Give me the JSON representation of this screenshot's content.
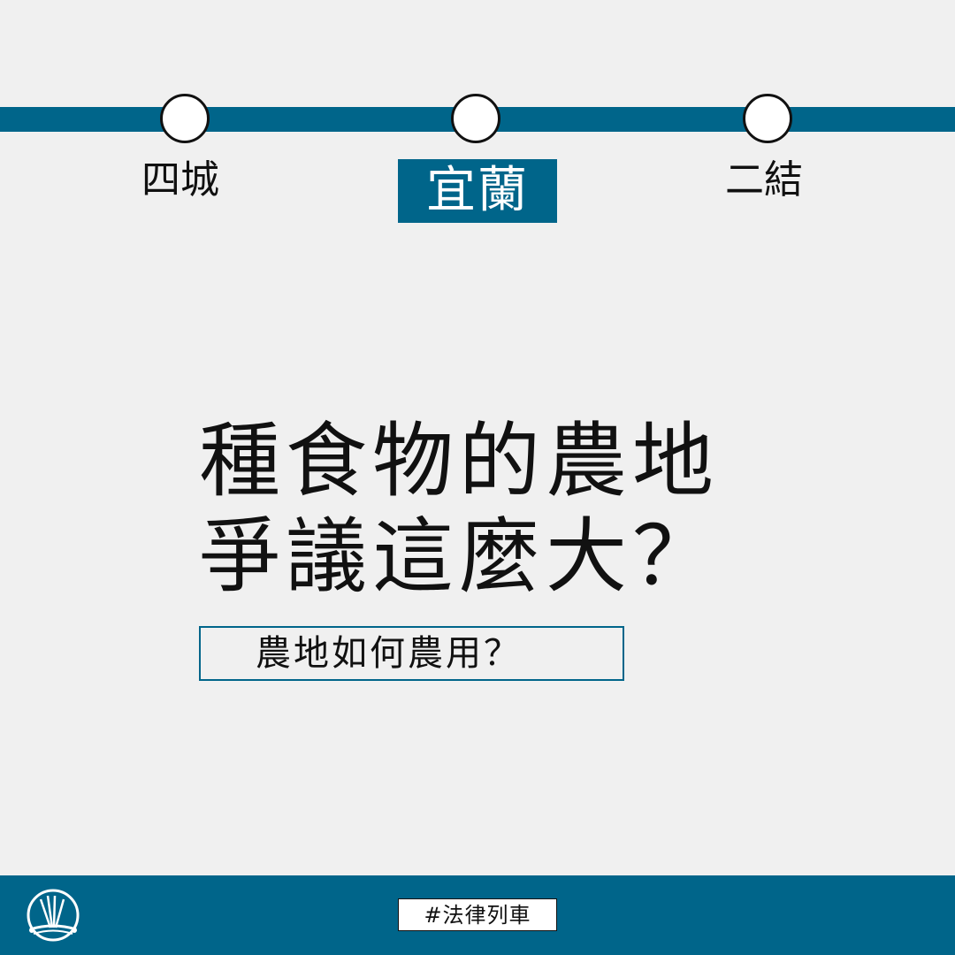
{
  "stations": {
    "previous": "四城",
    "current": "宜蘭",
    "next": "二結"
  },
  "headline": {
    "line1": "種食物的農地",
    "line2": "爭議這麼大？"
  },
  "subtitle": "農地如何農用？",
  "footer": {
    "hashtag": "#法律列車",
    "logo_icon": "railway-logo-icon"
  },
  "colors": {
    "accent": "#00658a",
    "background": "#f0f0f0",
    "text": "#111111"
  }
}
